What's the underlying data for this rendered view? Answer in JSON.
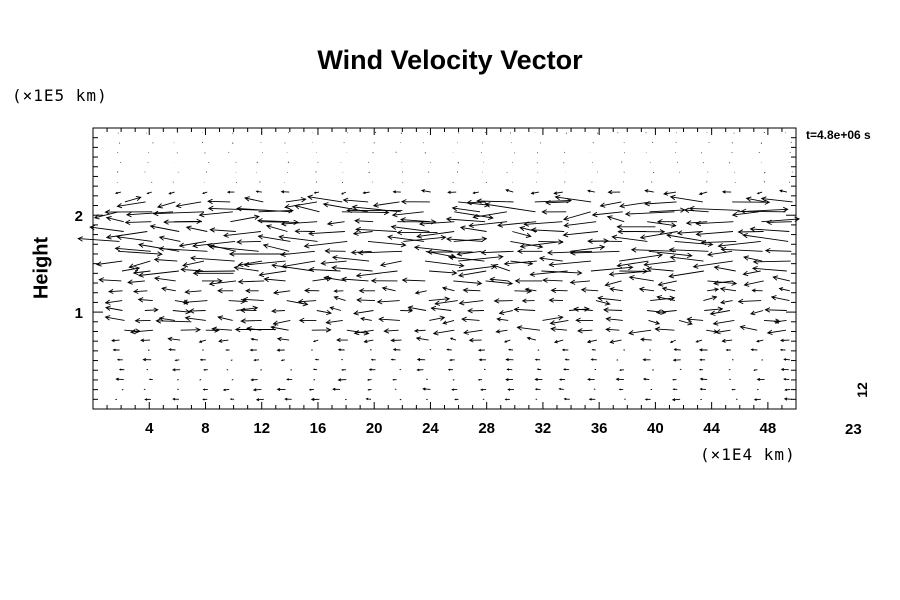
{
  "chart_data": {
    "type": "vector-field",
    "title": "Wind Velocity Vector",
    "ylabel": "Height",
    "y_unit_label": "(×1E5 km)",
    "x_unit_label": "(×1E4 km)",
    "time_label": "t=4.8e+06 s",
    "corner_label": "23",
    "side_label": "12",
    "xlim": [
      0,
      50
    ],
    "ylim": [
      0,
      2.9
    ],
    "x_ticks": [
      4,
      8,
      12,
      16,
      20,
      24,
      28,
      32,
      36,
      40,
      44,
      48
    ],
    "y_ticks": [
      1,
      2
    ],
    "grid": false,
    "layers": [
      {
        "y": 2.05,
        "strength": 1.6
      },
      {
        "y": 1.8,
        "strength": 1.1
      },
      {
        "y": 1.6,
        "strength": 1.2
      },
      {
        "y": 1.4,
        "strength": 1.0
      },
      {
        "y": 1.1,
        "strength": 0.6
      },
      {
        "y": 0.85,
        "strength": 0.6
      }
    ]
  }
}
